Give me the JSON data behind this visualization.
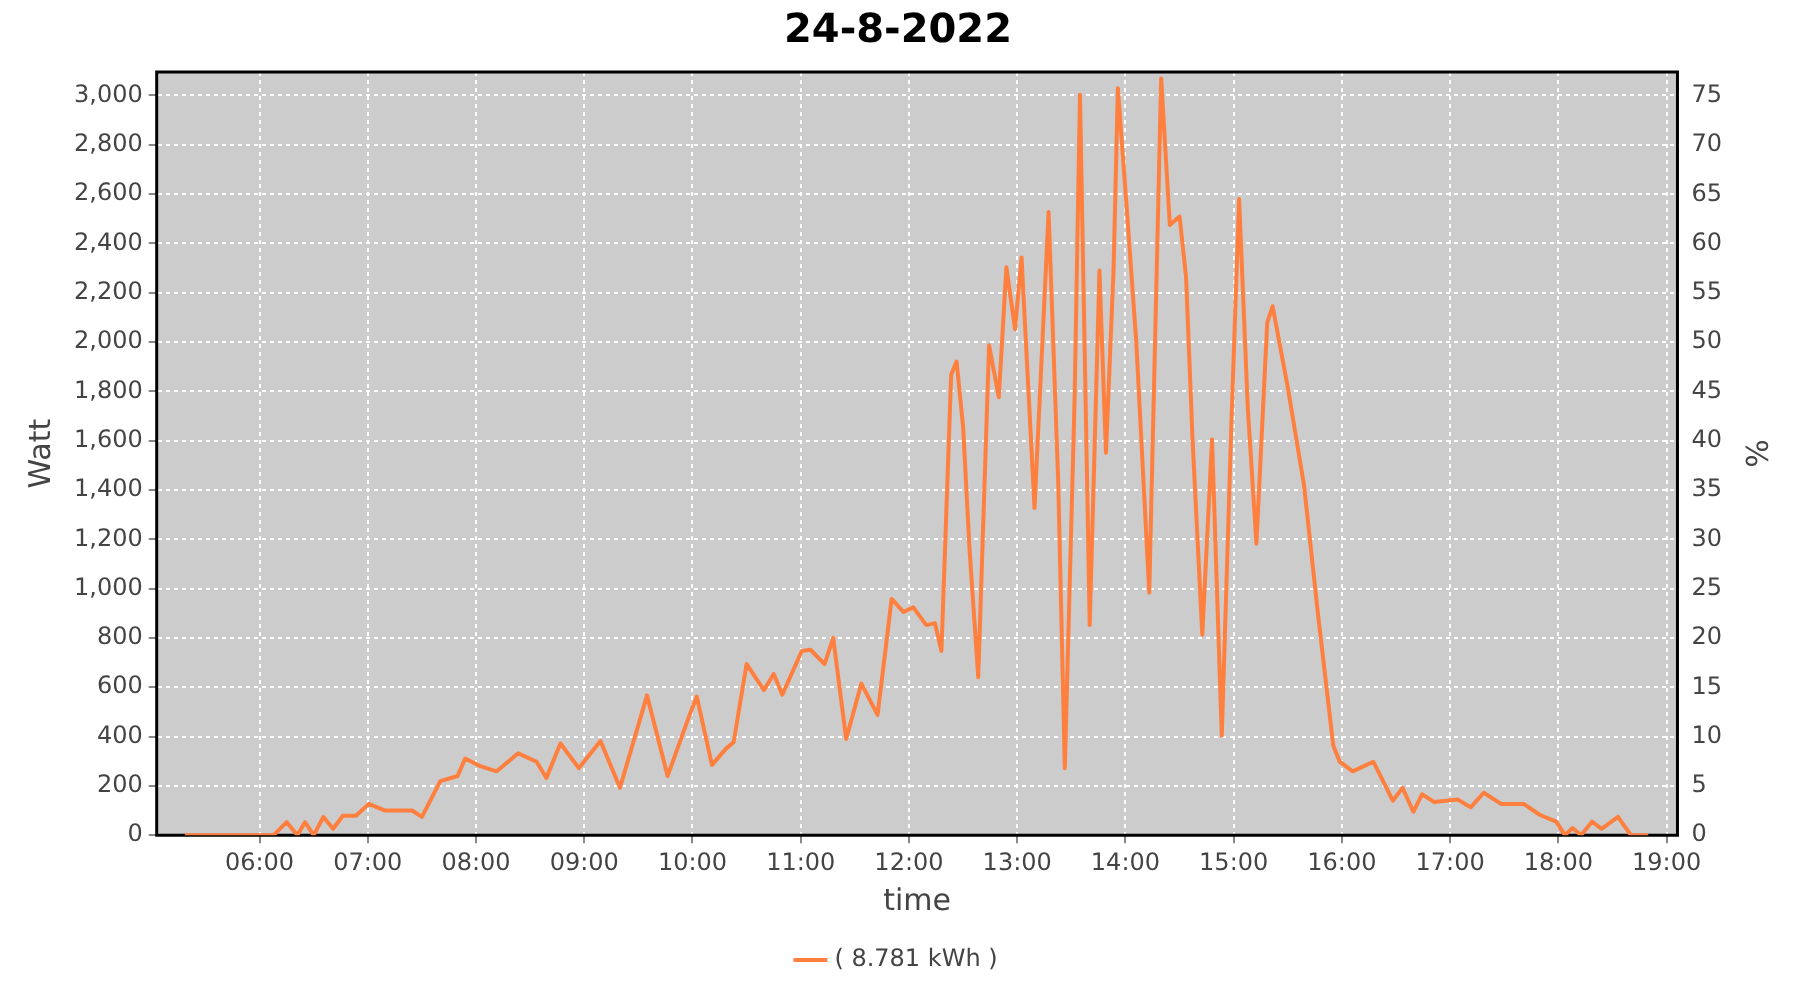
{
  "chart_data": {
    "type": "line",
    "title": "24-8-2022",
    "xlabel": "time",
    "ylabel": "Watt",
    "y2label": "%",
    "xlim": [
      5.05,
      19.1
    ],
    "xticks": [
      {
        "value": 6,
        "label": "06:00"
      },
      {
        "value": 7,
        "label": "07:00"
      },
      {
        "value": 8,
        "label": "08:00"
      },
      {
        "value": 9,
        "label": "09:00"
      },
      {
        "value": 10,
        "label": "10:00"
      },
      {
        "value": 11,
        "label": "11:00"
      },
      {
        "value": 12,
        "label": "12:00"
      },
      {
        "value": 13,
        "label": "13:00"
      },
      {
        "value": 14,
        "label": "14:00"
      },
      {
        "value": 15,
        "label": "15:00"
      },
      {
        "value": 16,
        "label": "16:00"
      },
      {
        "value": 17,
        "label": "17:00"
      },
      {
        "value": 18,
        "label": "18:00"
      },
      {
        "value": 19,
        "label": "19:00"
      }
    ],
    "ylim": [
      0,
      3095
    ],
    "yticks": [
      0,
      200,
      400,
      600,
      800,
      {
        "value": 1000,
        "label": "1,000"
      },
      {
        "value": 1200,
        "label": "1,200"
      },
      {
        "value": 1400,
        "label": "1,400"
      },
      {
        "value": 1600,
        "label": "1,600"
      },
      {
        "value": 1800,
        "label": "1,800"
      },
      {
        "value": 2000,
        "label": "2,000"
      },
      {
        "value": 2200,
        "label": "2,200"
      },
      {
        "value": 2400,
        "label": "2,400"
      },
      {
        "value": 2600,
        "label": "2,600"
      },
      {
        "value": 2800,
        "label": "2,800"
      },
      {
        "value": 3000,
        "label": "3,000"
      }
    ],
    "y2lim": [
      0,
      77.4
    ],
    "y2ticks": [
      0,
      5,
      10,
      15,
      20,
      25,
      30,
      35,
      40,
      45,
      50,
      55,
      60,
      65,
      70,
      75
    ],
    "grid": true,
    "legend": "bottom",
    "marker": "none",
    "line_style": "solid",
    "series": [
      {
        "name": "( 8.781 kWh )",
        "color": "#ff7f3f",
        "x": [
          5.31,
          6.13,
          6.25,
          6.35,
          6.42,
          6.5,
          6.59,
          6.68,
          6.77,
          6.89,
          7.01,
          7.16,
          7.41,
          7.5,
          7.67,
          7.83,
          7.9,
          8.04,
          8.19,
          8.39,
          8.56,
          8.65,
          8.78,
          8.95,
          9.15,
          9.33,
          9.58,
          9.77,
          9.98,
          10.04,
          10.18,
          10.31,
          10.38,
          10.5,
          10.66,
          10.75,
          10.83,
          11.01,
          11.09,
          11.22,
          11.3,
          11.42,
          11.56,
          11.71,
          11.84,
          11.95,
          12.04,
          12.16,
          12.24,
          12.3,
          12.39,
          12.44,
          12.5,
          12.56,
          12.64,
          12.74,
          12.83,
          12.9,
          12.98,
          13.04,
          13.16,
          13.29,
          13.38,
          13.44,
          13.53,
          13.58,
          13.67,
          13.76,
          13.82,
          13.89,
          13.93,
          14.01,
          14.1,
          14.22,
          14.33,
          14.41,
          14.5,
          14.56,
          14.62,
          14.71,
          14.8,
          14.89,
          14.98,
          15.05,
          15.13,
          15.21,
          15.31,
          15.36,
          15.5,
          15.65,
          15.78,
          15.92,
          15.98,
          16.1,
          16.29,
          16.47,
          16.56,
          16.66,
          16.74,
          16.85,
          17.07,
          17.19,
          17.31,
          17.47,
          17.68,
          17.83,
          17.98,
          18.06,
          18.13,
          18.21,
          18.31,
          18.4,
          18.55,
          18.67,
          18.83
        ],
        "values": [
          0,
          0,
          53,
          0,
          53,
          0,
          74,
          26,
          79,
          79,
          127,
          100,
          100,
          74,
          219,
          240,
          311,
          280,
          259,
          332,
          298,
          232,
          372,
          272,
          382,
          192,
          567,
          240,
          496,
          562,
          285,
          351,
          377,
          694,
          588,
          654,
          570,
          747,
          752,
          694,
          800,
          390,
          615,
          488,
          958,
          905,
          924,
          852,
          860,
          747,
          1868,
          1921,
          1657,
          1156,
          641,
          1987,
          1776,
          2303,
          2052,
          2343,
          1327,
          2527,
          1419,
          272,
          1763,
          3003,
          852,
          2290,
          1551,
          2290,
          3029,
          2554,
          2000,
          984,
          3069,
          2475,
          2509,
          2264,
          1605,
          813,
          1605,
          404,
          1684,
          2580,
          1736,
          1182,
          2079,
          2145,
          1815,
          1419,
          892,
          364,
          298,
          259,
          298,
          140,
          192,
          95,
          166,
          135,
          145,
          113,
          172,
          127,
          127,
          82,
          55,
          0,
          29,
          0,
          55,
          26,
          74,
          0,
          0
        ]
      }
    ]
  }
}
